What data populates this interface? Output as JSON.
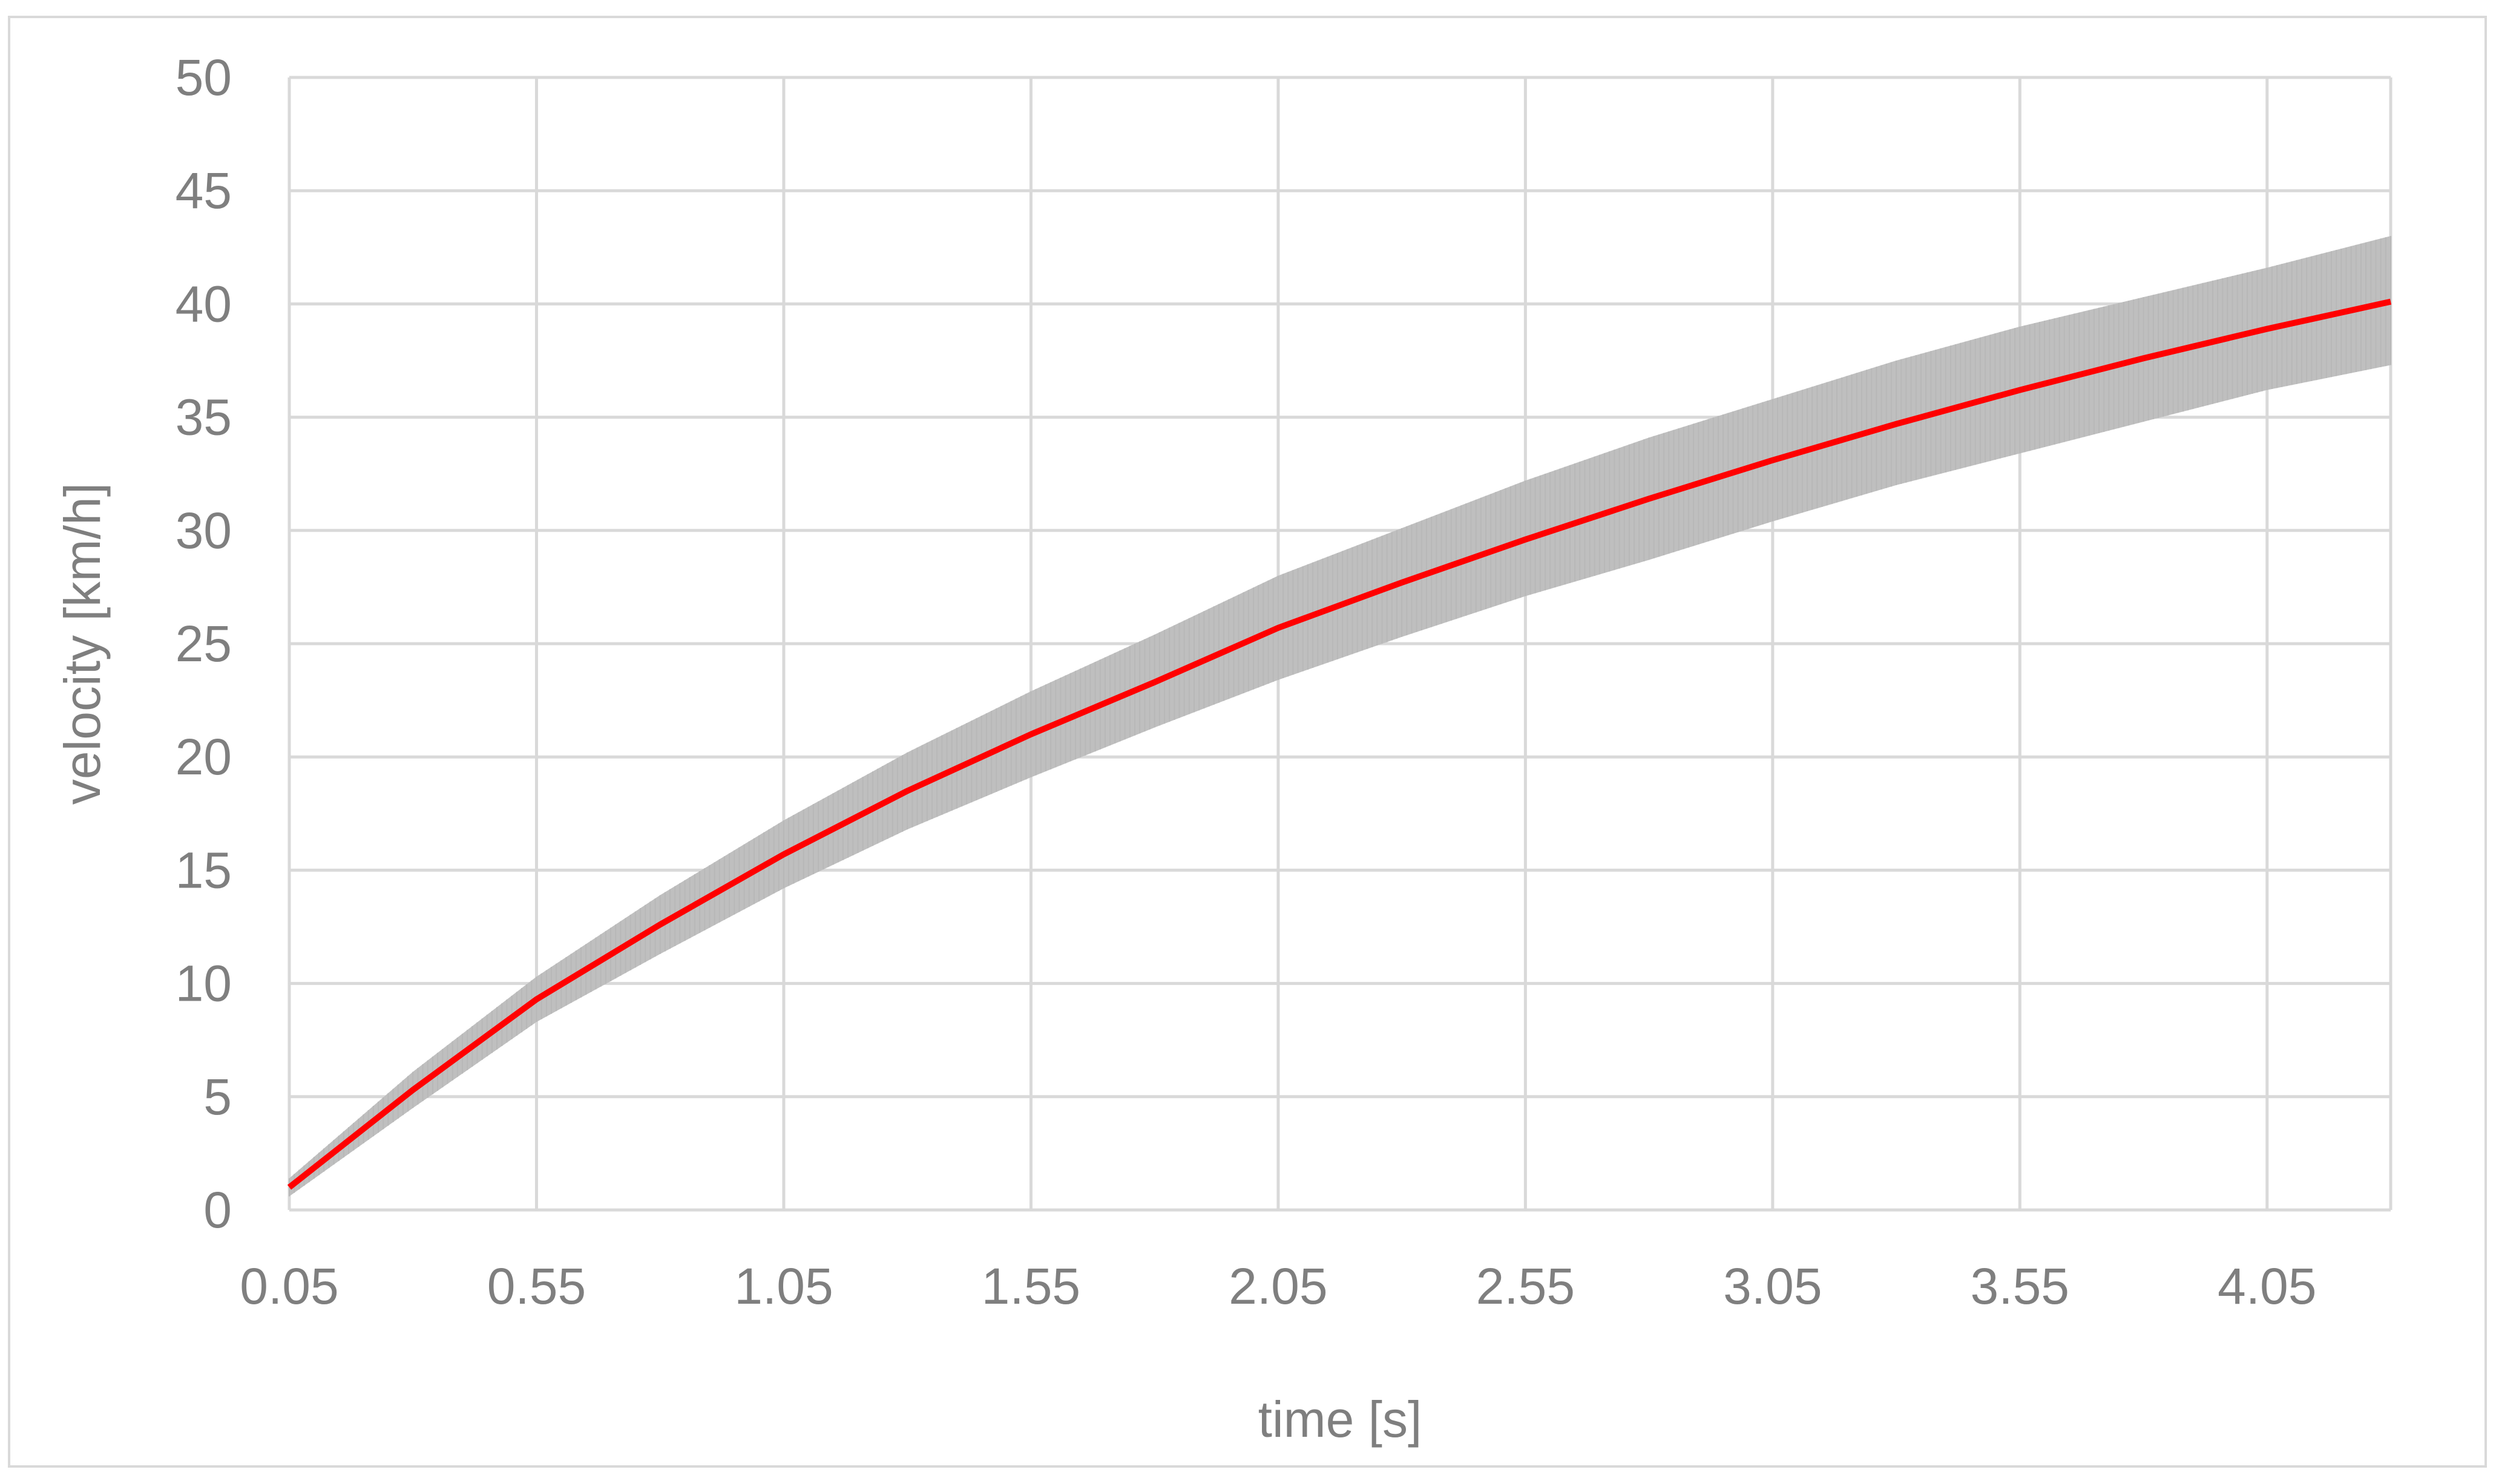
{
  "chart_data": {
    "type": "line",
    "title": "",
    "xlabel": "time [s]",
    "ylabel": "velocity [km/h]",
    "x_ticks": [
      "0.05",
      "0.55",
      "1.05",
      "1.55",
      "2.05",
      "2.55",
      "3.05",
      "3.55",
      "4.05"
    ],
    "y_ticks": [
      "0",
      "5",
      "10",
      "15",
      "20",
      "25",
      "30",
      "35",
      "40",
      "45",
      "50"
    ],
    "xlim": [
      0.05,
      4.3
    ],
    "ylim": [
      0,
      50
    ],
    "grid": true,
    "series": [
      {
        "role": "mean",
        "color": "#ff0000",
        "x": [
          0.05,
          0.3,
          0.55,
          0.8,
          1.05,
          1.3,
          1.55,
          1.8,
          2.05,
          2.3,
          2.55,
          2.8,
          3.05,
          3.3,
          3.55,
          3.8,
          4.05,
          4.3
        ],
        "y": [
          1.0,
          5.3,
          9.3,
          12.6,
          15.7,
          18.5,
          21.0,
          23.3,
          25.7,
          27.7,
          29.6,
          31.4,
          33.1,
          34.7,
          36.2,
          37.6,
          38.9,
          40.1
        ]
      },
      {
        "role": "error-band",
        "color": "#bfbfbf",
        "x": [
          0.05,
          0.3,
          0.55,
          0.8,
          1.05,
          1.3,
          1.55,
          1.8,
          2.05,
          2.3,
          2.55,
          2.8,
          3.05,
          3.3,
          3.55,
          3.8,
          4.05,
          4.3
        ],
        "upper": [
          1.4,
          6.1,
          10.3,
          13.9,
          17.2,
          20.2,
          22.9,
          25.4,
          28.0,
          30.1,
          32.2,
          34.1,
          35.8,
          37.5,
          39.0,
          40.3,
          41.6,
          43.0
        ],
        "lower": [
          0.6,
          4.5,
          8.3,
          11.3,
          14.2,
          16.8,
          19.1,
          21.3,
          23.4,
          25.3,
          27.1,
          28.7,
          30.4,
          32.0,
          33.4,
          34.8,
          36.2,
          37.3
        ]
      }
    ]
  }
}
